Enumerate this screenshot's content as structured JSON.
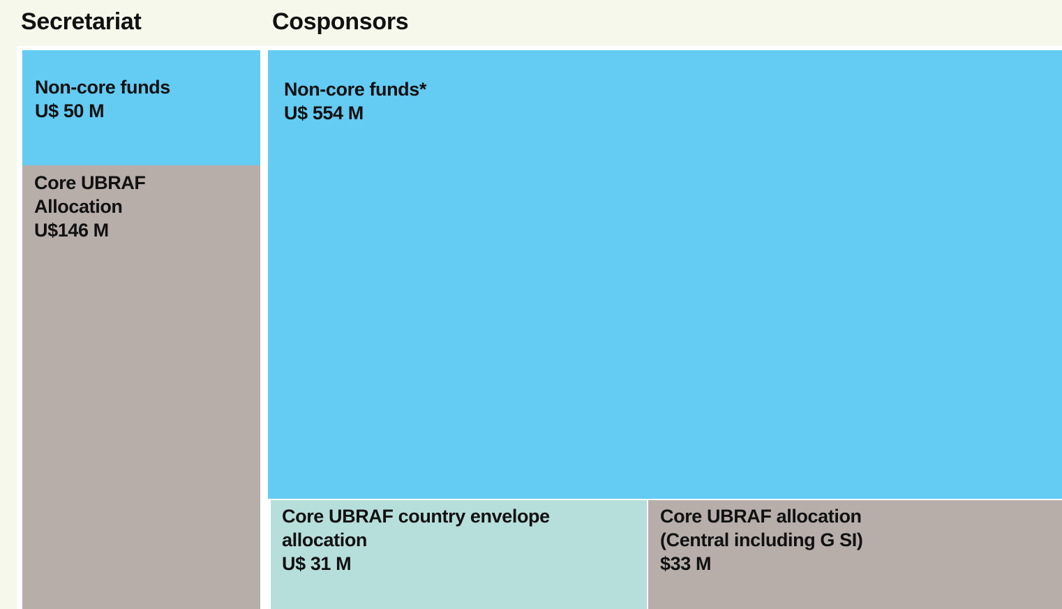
{
  "headers": {
    "secretariat": "Secretariat",
    "cosponsors": "Cosponsors"
  },
  "secretariat": {
    "non_core": {
      "lines": [
        "Non-core funds",
        "U$ 50 M"
      ],
      "value_musd": 50
    },
    "core": {
      "lines": [
        "Core UBRAF",
        "Allocation",
        "U$146 M"
      ],
      "value_musd": 146
    }
  },
  "cosponsors": {
    "non_core": {
      "lines": [
        "Non-core funds*",
        "U$ 554 M"
      ],
      "value_musd": 554
    },
    "core_country": {
      "lines": [
        "Core UBRAF country envelope",
        "allocation",
        "U$ 31 M"
      ],
      "value_musd": 31
    },
    "core_central": {
      "lines": [
        "Core UBRAF allocation",
        "(Central including G SI)",
        "$33 M"
      ],
      "value_musd": 33
    }
  },
  "colors": {
    "background": "#f6f8ec",
    "non_core_blue": "#64cbf3",
    "core_grey": "#b7aeaa",
    "country_teal": "#b6dfdc",
    "separator": "#ffffff"
  }
}
